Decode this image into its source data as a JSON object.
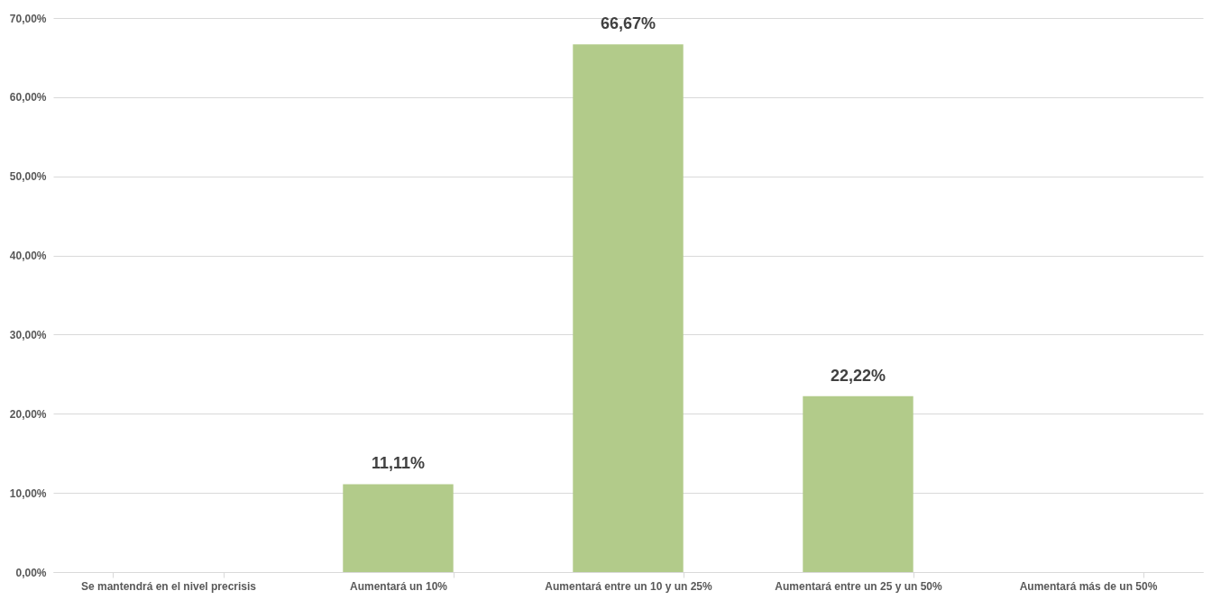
{
  "chart_data": {
    "type": "bar",
    "categories": [
      "Se mantendrá en el nivel precrisis",
      "Aumentará un 10%",
      "Aumentará entre un 10 y un 25%",
      "Aumentará entre un 25 y un 50%",
      "Aumentará más de un 50%"
    ],
    "values": [
      0,
      11.11,
      66.67,
      22.22,
      0
    ],
    "value_labels": [
      null,
      "11,11%",
      "66,67%",
      "22,22%",
      null
    ],
    "color": "#b2cb8a",
    "ylim": [
      0,
      70
    ],
    "yticks": [
      {
        "value": 0,
        "label": "0,00%"
      },
      {
        "value": 10,
        "label": "10,00%"
      },
      {
        "value": 20,
        "label": "20,00%"
      },
      {
        "value": 30,
        "label": "30,00%"
      },
      {
        "value": 40,
        "label": "40,00%"
      },
      {
        "value": 50,
        "label": "50,00%"
      },
      {
        "value": 60,
        "label": "60,00%"
      },
      {
        "value": 70,
        "label": "70,00%"
      }
    ],
    "grid": true
  }
}
